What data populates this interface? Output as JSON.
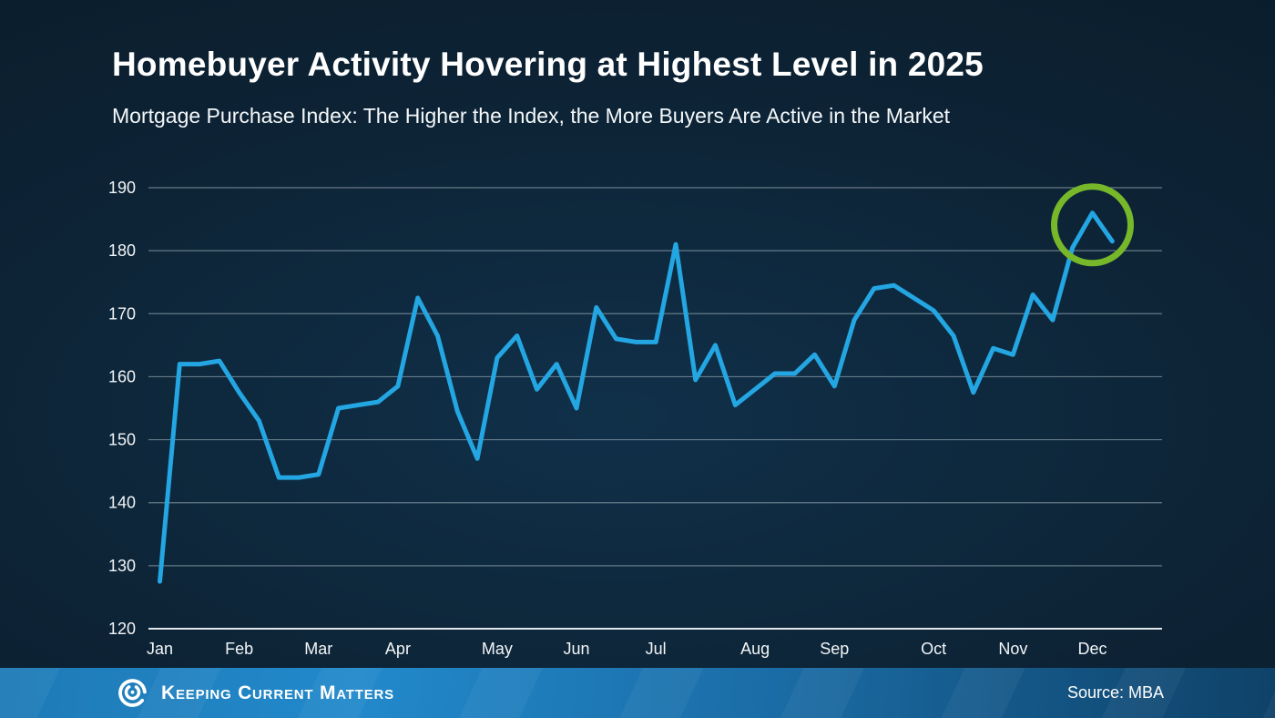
{
  "header": {
    "title": "Homebuyer Activity Hovering at Highest Level in 2025",
    "subtitle": "Mortgage Purchase Index: The Higher the Index, the More Buyers Are Active in the Market"
  },
  "chart_data": {
    "type": "line",
    "title": "Homebuyer Activity Hovering at Highest Level in 2025",
    "subtitle": "Mortgage Purchase Index: The Higher the Index, the More Buyers Are Active in the Market",
    "x_unit": "weekly observations, 2025",
    "categories": [
      "Jan",
      "Feb",
      "Mar",
      "Apr",
      "May",
      "Jun",
      "Jul",
      "Aug",
      "Sep",
      "Oct",
      "Nov",
      "Dec"
    ],
    "month_week_indices": [
      0,
      4,
      8,
      12,
      17,
      21,
      25,
      30,
      34,
      39,
      43,
      47
    ],
    "values": [
      127.5,
      162,
      162,
      162.5,
      157.5,
      153,
      144,
      144,
      144.5,
      155,
      155.5,
      156,
      158.5,
      172.5,
      166.5,
      154.5,
      147,
      163,
      166.5,
      158,
      162,
      155,
      171,
      166,
      165.5,
      165.5,
      181,
      159.5,
      165,
      155.5,
      158,
      160.5,
      160.5,
      163.5,
      158.5,
      169,
      174,
      174.5,
      172.5,
      170.5,
      166.5,
      157.5,
      164.5,
      163.5,
      173,
      169,
      180.5,
      186,
      181.5
    ],
    "ylim": [
      120,
      190
    ],
    "yticks": [
      120,
      130,
      140,
      150,
      160,
      170,
      180,
      190
    ],
    "grid": true,
    "legend": "none",
    "annotation": {
      "type": "circle",
      "week_index": 47,
      "center_value": 184.1,
      "radius": 42,
      "stroke_width": 7,
      "color": "#76b82a"
    },
    "colors": {
      "line": "#23a6e2",
      "grid": "#8296a2",
      "baseline": "#dfe7ec",
      "tick_text": "#f2f6f8"
    },
    "layout": {
      "plot_left": 163,
      "plot_right": 1276,
      "y_top": 206,
      "y_bottom": 690,
      "week0_x": 175.5,
      "week_dx": 21.787,
      "line_width": 5
    }
  },
  "footer": {
    "brand": "Keeping Current Matters",
    "source": "Source: MBA"
  },
  "colors": {
    "background": "#0d2335",
    "footer_left": "#2289cb",
    "footer_right": "#0f4268",
    "accent_line": "#23a6e2",
    "annotation_green": "#76b82a",
    "text": "#ffffff"
  }
}
